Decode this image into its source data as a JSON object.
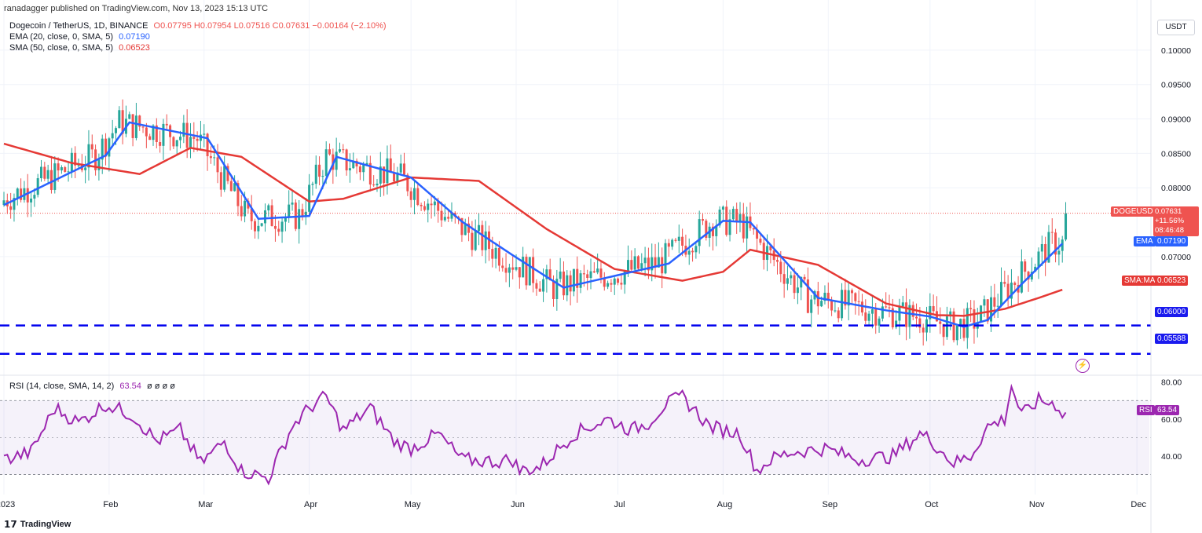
{
  "header": {
    "published": "ranadagger published on TradingView.com, Nov 13, 2023 15:13 UTC",
    "symbol_line": "Dogecoin / TetherUS, 1D, BINANCE",
    "ohlc": "O0.07795 H0.07954 L0.07516 C0.07631 −0.00164 (−2.10%)",
    "ema_label": "EMA (20, close, 0, SMA, 5)",
    "ema_value": "0.07190",
    "sma_label": "SMA (50, close, 0, SMA, 5)",
    "sma_value": "0.06523",
    "rsi_label": "RSI (14, close, SMA, 14, 2)",
    "rsi_value": "63.54",
    "rsi_extra": "ø ø ø ø",
    "currency": "USDT",
    "footer_brand": "TradingView"
  },
  "price_axis": {
    "ticks": [
      "0.10000",
      "0.09500",
      "0.09000",
      "0.08500",
      "0.08000",
      "0.07000"
    ],
    "tick_values": [
      0.1,
      0.095,
      0.09,
      0.085,
      0.08,
      0.07
    ]
  },
  "tags": {
    "symbol": "DOGEUSDT",
    "price": "0.07631",
    "change": "+11.56%",
    "countdown": "08:46:48",
    "ema_tag": "EMA",
    "ema_val": "0.07190",
    "sma_tag": "SMA:MA",
    "sma_val": "0.06523",
    "support1": "0.06000",
    "support2": "0.05588",
    "rsi_tag": "RSI",
    "rsi_val": "63.54"
  },
  "rsi_axis": {
    "ticks": [
      "80.00",
      "60.00",
      "40.00"
    ],
    "tick_values": [
      80,
      60,
      40
    ]
  },
  "time_axis": {
    "labels": [
      "2023",
      "Feb",
      "Mar",
      "Apr",
      "May",
      "Jun",
      "Jul",
      "Aug",
      "Sep",
      "Oct",
      "Nov",
      "Dec"
    ],
    "day_index": [
      0,
      31,
      59,
      90,
      120,
      151,
      181,
      212,
      243,
      273,
      304,
      334
    ]
  },
  "colors": {
    "up": "#26a69a",
    "down": "#ef5350",
    "ema": "#2962ff",
    "sma": "#e53935",
    "rsi": "#9c27b0",
    "support": "#0000ee",
    "rsi_band": "#7e57c2"
  },
  "chart_data": {
    "type": "candlestick",
    "title": "Dogecoin / TetherUS, 1D, BINANCE",
    "ylim": [
      0.053,
      0.105
    ],
    "support_levels": [
      0.06,
      0.05588
    ],
    "last_close": 0.07631,
    "series": [
      {
        "name": "EMA (20, close, 0, SMA, 5)",
        "x": [
          0,
          30,
          37,
          60,
          75,
          90,
          98,
          120,
          135,
          150,
          165,
          180,
          196,
          212,
          220,
          240,
          260,
          273,
          283,
          290,
          300,
          312
        ],
        "values": [
          0.0775,
          0.0847,
          0.0895,
          0.0872,
          0.0755,
          0.0759,
          0.0845,
          0.0815,
          0.0751,
          0.0702,
          0.0655,
          0.0672,
          0.069,
          0.0752,
          0.075,
          0.064,
          0.0622,
          0.0613,
          0.0598,
          0.0608,
          0.066,
          0.0719
        ]
      },
      {
        "name": "SMA (50, close, 0, SMA, 5)",
        "x": [
          0,
          20,
          40,
          55,
          70,
          90,
          100,
          120,
          140,
          160,
          180,
          200,
          212,
          220,
          240,
          260,
          275,
          283,
          295,
          305,
          312
        ],
        "values": [
          0.0864,
          0.0836,
          0.082,
          0.0858,
          0.0845,
          0.078,
          0.0784,
          0.0815,
          0.081,
          0.074,
          0.0682,
          0.0665,
          0.0678,
          0.071,
          0.0688,
          0.0632,
          0.0615,
          0.0614,
          0.0624,
          0.064,
          0.0652
        ]
      }
    ],
    "rsi": {
      "ylim": [
        20,
        82
      ],
      "bands": [
        70,
        30
      ],
      "x": [
        0,
        8,
        15,
        22,
        30,
        38,
        45,
        52,
        58,
        65,
        70,
        78,
        85,
        90,
        93,
        95,
        100,
        108,
        115,
        120,
        128,
        135,
        145,
        150,
        152,
        158,
        168,
        178,
        185,
        190,
        195,
        200,
        208,
        212,
        217,
        222,
        226,
        232,
        242,
        252,
        262,
        270,
        273,
        280,
        285,
        290,
        295,
        297,
        300,
        305,
        310,
        312
      ],
      "values": [
        38,
        42,
        66,
        58,
        68,
        62,
        48,
        54,
        36,
        48,
        32,
        28,
        56,
        66,
        70,
        72,
        54,
        66,
        48,
        44,
        52,
        38,
        37,
        38,
        32,
        34,
        52,
        60,
        54,
        58,
        68,
        72,
        56,
        54,
        52,
        32,
        38,
        42,
        44,
        38,
        40,
        52,
        49,
        36,
        40,
        56,
        60,
        78,
        62,
        70,
        68,
        63.54
      ]
    }
  }
}
